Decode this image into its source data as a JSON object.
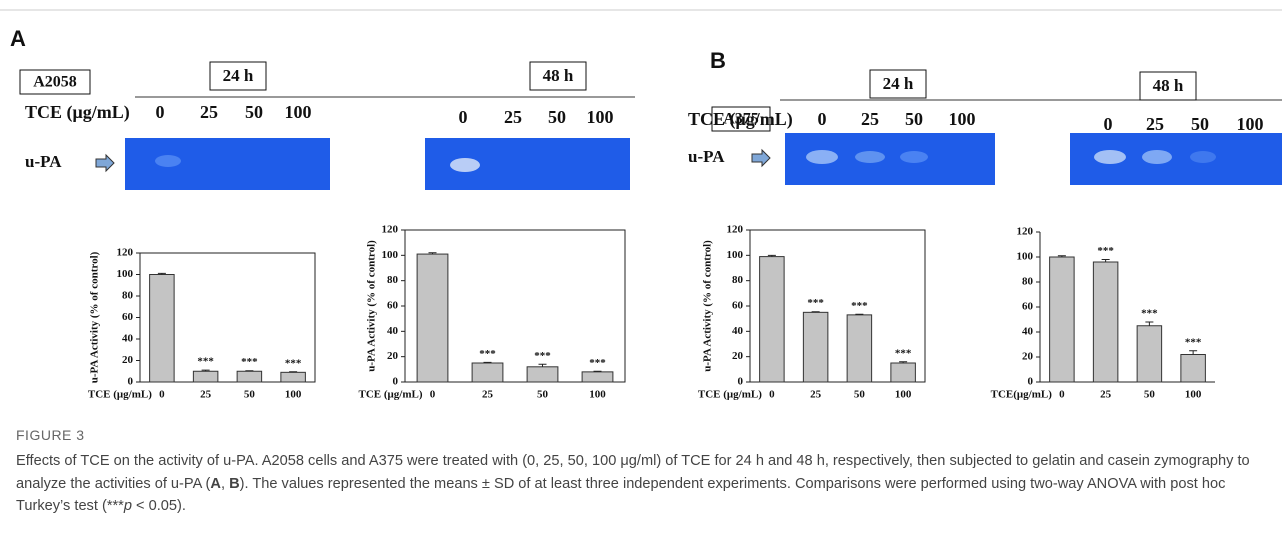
{
  "panels": [
    {
      "label": "A",
      "cell_line": "A2058",
      "dose_label": "TCE (μg/mL)",
      "band_label": "u-PA",
      "groups": [
        {
          "time": "24 h",
          "doses": [
            "0",
            "25",
            "50",
            "100"
          ]
        },
        {
          "time": "48 h",
          "doses": [
            "0",
            "25",
            "50",
            "100"
          ]
        }
      ]
    },
    {
      "label": "B",
      "cell_line": "A375",
      "dose_label": "TCE (μg/mL)",
      "band_label": "u-PA",
      "groups": [
        {
          "time": "24 h",
          "doses": [
            "0",
            "25",
            "50",
            "100"
          ]
        },
        {
          "time": "48 h",
          "doses": [
            "0",
            "25",
            "50",
            "100"
          ]
        }
      ]
    }
  ],
  "chart_data": [
    {
      "type": "bar",
      "ylabel": "u-PA Activity (% of control)",
      "xlabel": "TCE (μg/mL)",
      "categories": [
        "0",
        "25",
        "50",
        "100"
      ],
      "values": [
        100,
        10,
        10,
        9
      ],
      "errors": [
        1,
        1,
        0.5,
        0.5
      ],
      "annotations": [
        null,
        "***",
        "***",
        "***"
      ],
      "color": "#c4c4c4",
      "ylim": [
        0,
        120
      ],
      "yticks": [
        0,
        20,
        40,
        60,
        80,
        100,
        120
      ],
      "frame": true
    },
    {
      "type": "bar",
      "ylabel": "u-PA Activity (% of control)",
      "xlabel": "TCE (μg/mL)",
      "categories": [
        "0",
        "25",
        "50",
        "100"
      ],
      "values": [
        101,
        15,
        12,
        8
      ],
      "errors": [
        1,
        0.5,
        2,
        0.5
      ],
      "annotations": [
        null,
        "***",
        "***",
        "***"
      ],
      "color": "#c4c4c4",
      "ylim": [
        0,
        120
      ],
      "yticks": [
        0,
        20,
        40,
        60,
        80,
        100,
        120
      ],
      "frame": true
    },
    {
      "type": "bar",
      "ylabel": "u-PA Activity (% of control)",
      "xlabel": "TCE (μg/mL)",
      "categories": [
        "0",
        "25",
        "50",
        "100"
      ],
      "values": [
        99,
        55,
        53,
        15
      ],
      "errors": [
        1,
        0.5,
        0.5,
        1
      ],
      "annotations": [
        null,
        "***",
        "***",
        "***"
      ],
      "color": "#c4c4c4",
      "ylim": [
        0,
        120
      ],
      "yticks": [
        0,
        20,
        40,
        60,
        80,
        100,
        120
      ],
      "frame": true
    },
    {
      "type": "bar",
      "xlabel": "TCE(μg/mL)",
      "categories": [
        "0",
        "25",
        "50",
        "100"
      ],
      "values": [
        100,
        96,
        45,
        22
      ],
      "errors": [
        1,
        2,
        3,
        3
      ],
      "annotations": [
        null,
        "***",
        "***",
        "***"
      ],
      "color": "#c4c4c4",
      "ylim": [
        0,
        120
      ],
      "yticks": [
        0,
        20,
        40,
        60,
        80,
        100,
        120
      ],
      "frame": false
    }
  ],
  "figure": {
    "label": "FIGURE 3",
    "caption": [
      "Effects of TCE on the activity of u-PA. A2058 cells and A375 were treated with (0, 25, 50, 100 μg/ml) of TCE for 24 h and 48 h, respectively, then subjected to gelatin and casein zymography to analyze the activities of u-PA (",
      "A",
      ", ",
      "B",
      "). The values represented the means ± SD of at least three independent experiments. Comparisons were performed using two-way ANOVA with post hoc Turkey’s test (",
      "***",
      "p",
      " < 0.05)."
    ]
  }
}
